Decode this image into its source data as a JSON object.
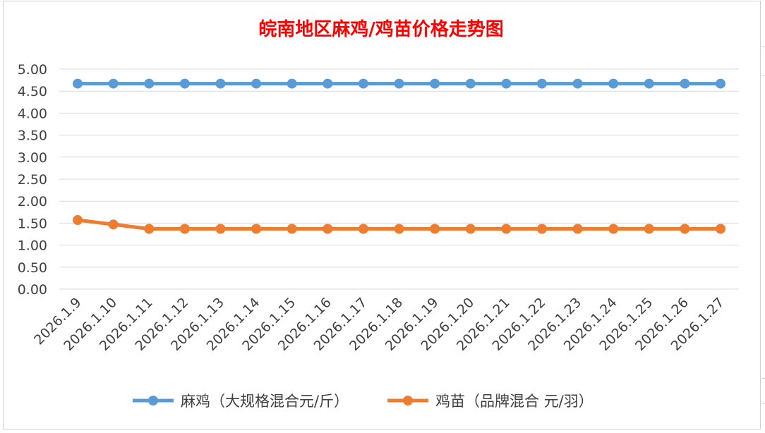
{
  "chart_data": {
    "type": "line",
    "title": "皖南地区麻鸡/鸡苗价格走势图",
    "categories": [
      "2026.1.9",
      "2026.1.10",
      "2026.1.11",
      "2026.1.12",
      "2026.1.13",
      "2026.1.14",
      "2026.1.15",
      "2026.1.16",
      "2026.1.17",
      "2026.1.18",
      "2026.1.19",
      "2026.1.20",
      "2026.1.21",
      "2026.1.22",
      "2026.1.23",
      "2026.1.24",
      "2026.1.25",
      "2026.1.26",
      "2026.1.27"
    ],
    "ylim": [
      0,
      5
    ],
    "yticks": [
      "0.00",
      "0.50",
      "1.00",
      "1.50",
      "2.00",
      "2.50",
      "3.00",
      "3.50",
      "4.00",
      "4.50",
      "5.00"
    ],
    "grid": true,
    "legend_position": "bottom",
    "series": [
      {
        "name": "麻鸡（大规格混合元/斤）",
        "color": "#5b9bd5",
        "values": [
          4.67,
          4.67,
          4.67,
          4.67,
          4.67,
          4.67,
          4.67,
          4.67,
          4.67,
          4.67,
          4.67,
          4.67,
          4.67,
          4.67,
          4.67,
          4.67,
          4.67,
          4.67,
          4.67
        ]
      },
      {
        "name": "鸡苗（品牌混合 元/羽）",
        "color": "#ed7d31",
        "values": [
          1.57,
          1.47,
          1.37,
          1.37,
          1.37,
          1.37,
          1.37,
          1.37,
          1.37,
          1.37,
          1.37,
          1.37,
          1.37,
          1.37,
          1.37,
          1.37,
          1.37,
          1.37,
          1.37
        ]
      }
    ]
  }
}
